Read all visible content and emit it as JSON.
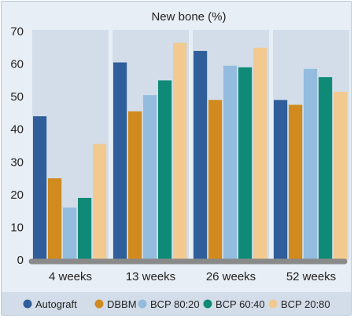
{
  "chart_data": {
    "type": "bar",
    "title": "New bone (%)",
    "xlabel": "",
    "ylabel": "",
    "categories": [
      "4 weeks",
      "13 weeks",
      "26 weeks",
      "52 weeks"
    ],
    "series": [
      {
        "name": "Autograft",
        "color": "#2f5e9a",
        "values": [
          44,
          60.5,
          64,
          49
        ]
      },
      {
        "name": "DBBM",
        "color": "#d08a1d",
        "values": [
          25,
          45.5,
          49,
          47.5
        ]
      },
      {
        "name": "BCP 80:20",
        "color": "#93bcde",
        "values": [
          16,
          50.5,
          59.5,
          58.5
        ]
      },
      {
        "name": "BCP 60:40",
        "color": "#0e8a76",
        "values": [
          19,
          55,
          59,
          56
        ]
      },
      {
        "name": "BCP 20:80",
        "color": "#f2c98e",
        "values": [
          35.5,
          66.5,
          65,
          51.5
        ]
      }
    ],
    "ylim": [
      0,
      70
    ],
    "yticks": [
      0,
      10,
      20,
      30,
      40,
      50,
      60,
      70
    ],
    "grid": false,
    "legend_position": "bottom",
    "colors": {
      "panel_background": "#e8eef5",
      "plot_background": "#d2dde9",
      "baseline": "#8a8a8a",
      "legend_background": "#d2dde9"
    }
  }
}
